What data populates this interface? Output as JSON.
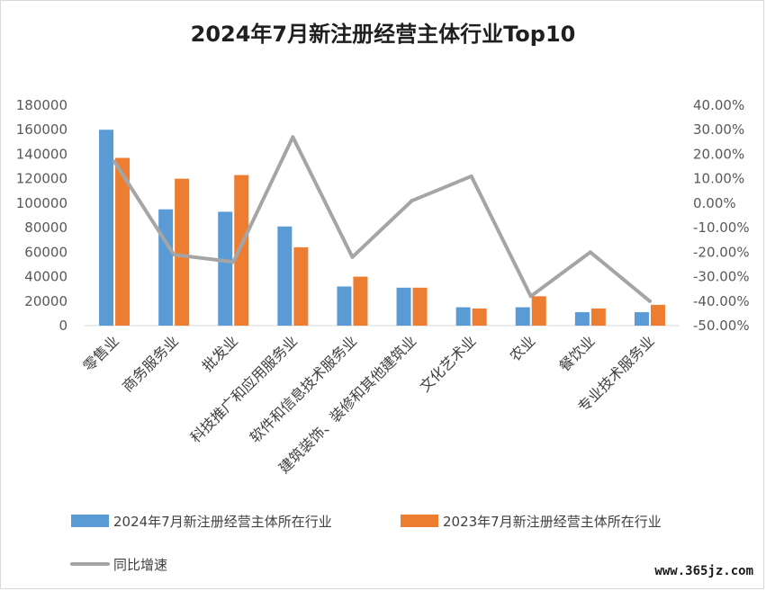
{
  "chart_data": {
    "type": "bar",
    "title": "2024年7月新注册经营主体行业Top10",
    "categories": [
      "零售业",
      "商务服务业",
      "批发业",
      "科技推广和应用服务业",
      "软件和信息技术服务业",
      "建筑装饰、装修和其他建筑业",
      "文化艺术业",
      "农业",
      "餐饮业",
      "专业技术服务业"
    ],
    "series": [
      {
        "name": "2024年7月新注册经营主体所在行业",
        "color": "#5b9bd5",
        "values": [
          160000,
          95000,
          93000,
          81000,
          32000,
          31000,
          15000,
          15000,
          11000,
          11000
        ]
      },
      {
        "name": "2023年7月新注册经营主体所在行业",
        "color": "#ed7d31",
        "values": [
          137000,
          120000,
          123000,
          64000,
          40000,
          31000,
          14000,
          24000,
          14000,
          17000
        ]
      }
    ],
    "line_series": {
      "name": "同比增速",
      "color": "#a5a5a5",
      "values": [
        17,
        -21,
        -24,
        27,
        -22,
        1,
        11,
        -38,
        -20,
        -40
      ]
    },
    "ylim": [
      0,
      180000
    ],
    "y_ticks": [
      "0",
      "20000",
      "40000",
      "60000",
      "80000",
      "100000",
      "120000",
      "140000",
      "160000",
      "180000"
    ],
    "y2lim": [
      -50,
      40
    ],
    "y2_ticks": [
      "-50.00%",
      "-40.00%",
      "-30.00%",
      "-20.00%",
      "-10.00%",
      "0.00%",
      "10.00%",
      "20.00%",
      "30.00%",
      "40.00%"
    ],
    "legend_position": "bottom",
    "grid": false
  },
  "watermark": "www.365jz.com"
}
